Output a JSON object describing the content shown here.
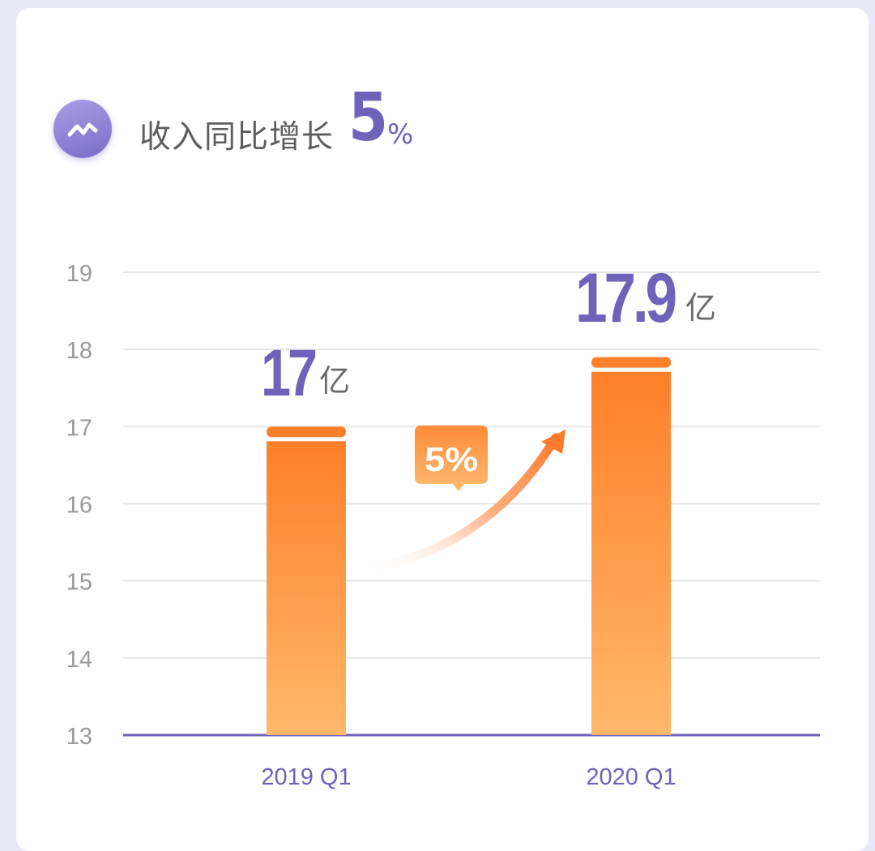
{
  "header": {
    "icon": "trend-wave-icon",
    "label": "收入同比增长",
    "growth_value": "5",
    "growth_unit": "%"
  },
  "chart_data": {
    "type": "bar",
    "categories": [
      "2019 Q1",
      "2020 Q1"
    ],
    "values": [
      17,
      17.9
    ],
    "data_labels": [
      "17",
      "17.9"
    ],
    "value_unit": "亿",
    "ylim": [
      13,
      19
    ],
    "yticks": [
      13,
      14,
      15,
      16,
      17,
      18,
      19
    ],
    "grid": true,
    "annotation": {
      "type": "growth-arrow-badge",
      "text": "5%"
    },
    "title": "",
    "xlabel": "",
    "ylabel": ""
  },
  "colors": {
    "accent": "#6f62bb",
    "bar_top": "#ff7f2a",
    "bar_bottom": "#ffb86a",
    "grid": "#e6e6e6",
    "axis": "#6f62bb",
    "tick_text": "#9a9a9a"
  }
}
